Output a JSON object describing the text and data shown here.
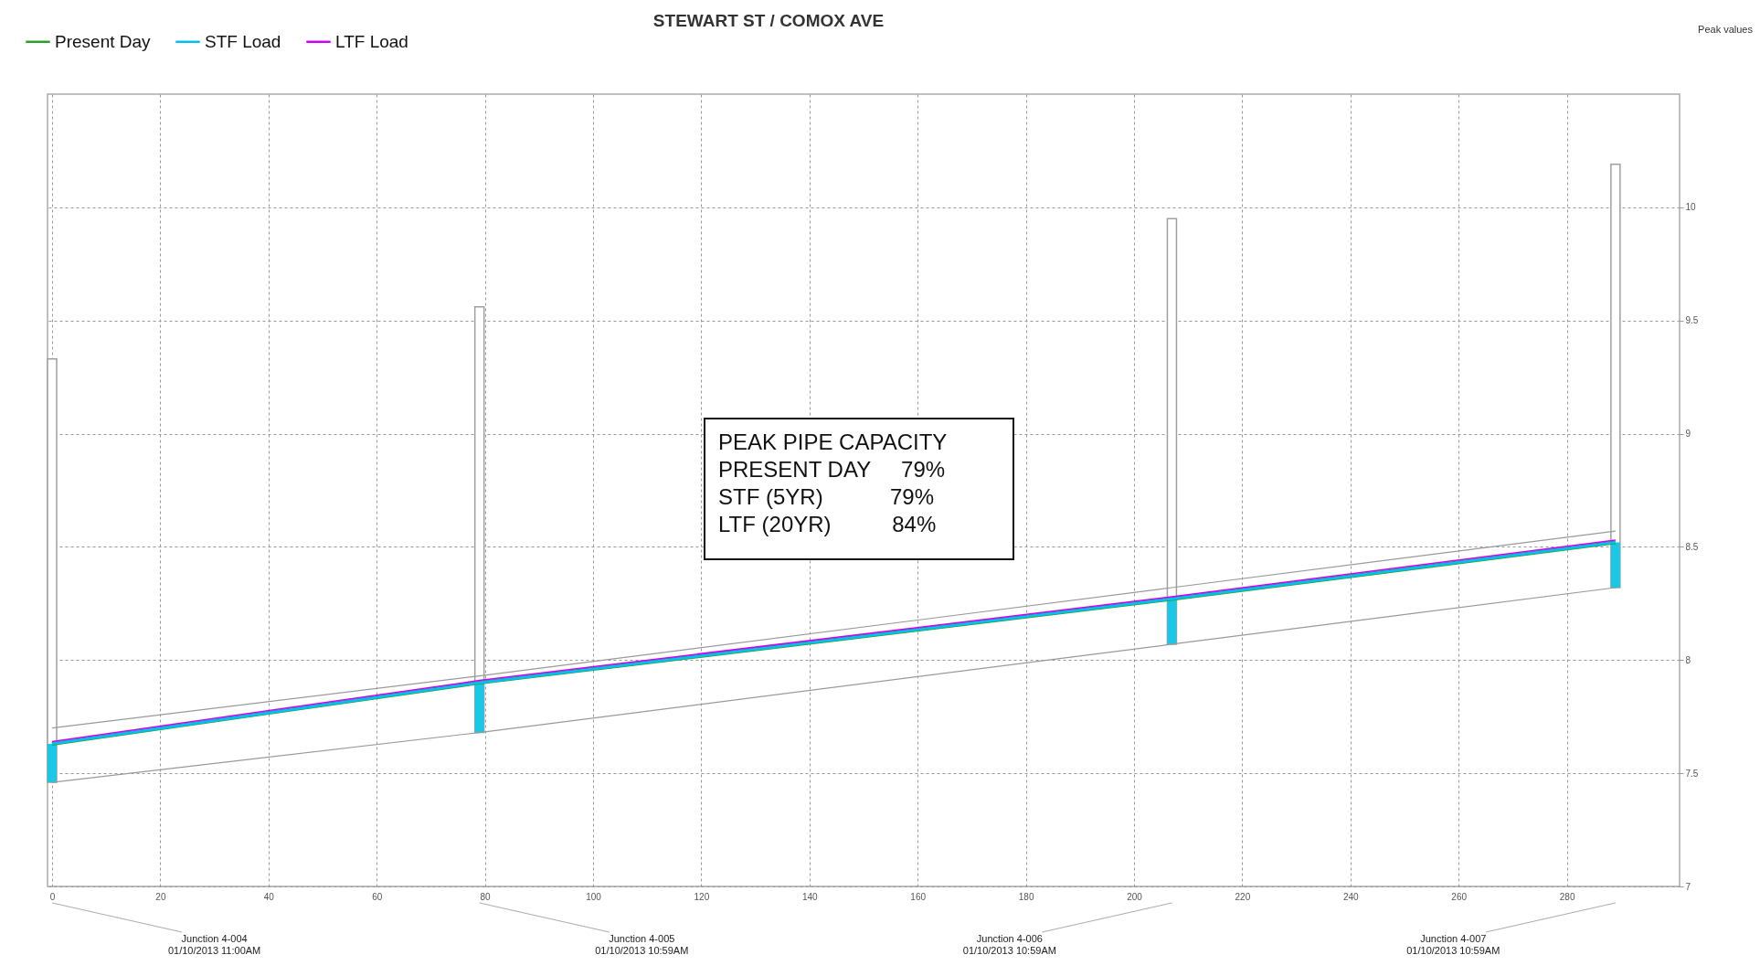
{
  "chart_data": {
    "type": "line",
    "title": "STEWART ST / COMOX AVE",
    "xlim": [
      0,
      300
    ],
    "xticks": [
      0,
      20,
      40,
      60,
      80,
      100,
      120,
      140,
      160,
      180,
      200,
      220,
      240,
      260,
      280
    ],
    "ylim": [
      7,
      10.5
    ],
    "yticks": [
      7,
      7.5,
      8,
      8.5,
      9,
      9.5,
      10
    ],
    "grid": true,
    "legend": "top left",
    "series": [
      {
        "type": "bar",
        "color": "#ffffff",
        "x": [
          0,
          79,
          207,
          289
        ],
        "base": [
          7.46,
          7.68,
          8.07,
          8.32
        ],
        "values": [
          1.87,
          1.88,
          1.88,
          1.87
        ]
      },
      {
        "type": "bar",
        "color": "#19c8e6",
        "x": [
          0,
          79,
          207,
          289
        ],
        "base": [
          7.46,
          7.68,
          8.07,
          8.32
        ],
        "values": [
          0.17,
          0.22,
          0.2,
          0.2
        ]
      },
      {
        "color": "#999999",
        "x": [
          0,
          79,
          207,
          289
        ],
        "values": [
          7.7,
          7.93,
          8.32,
          8.57
        ]
      },
      {
        "color": "#999999",
        "x": [
          0,
          79,
          207,
          289
        ],
        "values": [
          7.46,
          7.68,
          8.07,
          8.32
        ]
      },
      {
        "name": "Present Day",
        "color": "#2ca02c",
        "x": [
          0,
          79,
          207,
          289
        ],
        "values": [
          7.63,
          7.9,
          8.27,
          8.52
        ]
      },
      {
        "name": "STF Load",
        "color": "#00bff3",
        "x": [
          0,
          79,
          207,
          289
        ],
        "values": [
          7.63,
          7.9,
          8.27,
          8.52
        ]
      },
      {
        "name": "LTF Load",
        "color": "#cc00ff",
        "x": [
          0,
          79,
          207,
          289
        ],
        "values": [
          7.64,
          7.91,
          8.28,
          8.53
        ]
      }
    ],
    "annotations": [
      "Peak values",
      "PEAK PIPE CAPACITY\nPRESENT DAY     79%\nSTF (5YR)           79%\nLTF (20YR)          84%",
      "Junction 4-004\n01/10/2013 11:00AM",
      "Junction 4-005\n01/10/2013 10:59AM",
      "Junction 4-006\n01/10/2013 10:59AM",
      "Junction 4-007\n01/10/2013 10:59AM"
    ]
  }
}
